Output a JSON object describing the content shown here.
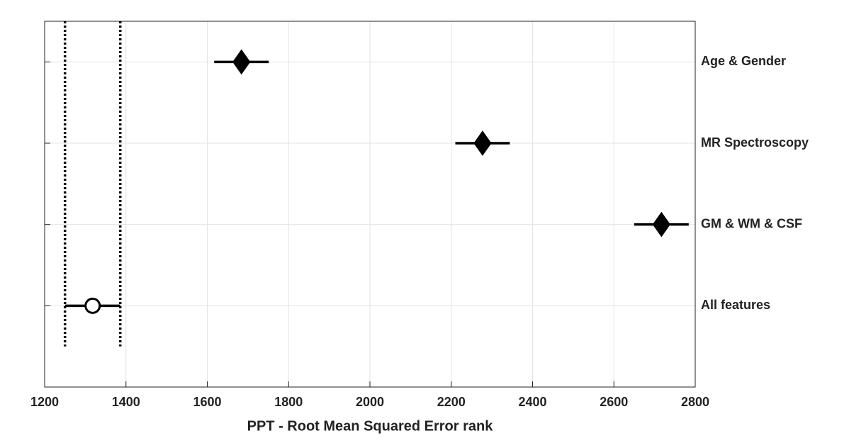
{
  "chart_data": {
    "type": "errorbar",
    "x_label": "PPT - Root Mean Squared Error rank",
    "categories": [
      "All features",
      "GM & WM & CSF",
      "MR Spectroscopy",
      "Age & Gender"
    ],
    "values": [
      1318,
      2717,
      2277,
      1684
    ],
    "errors": [
      68,
      67,
      67,
      67
    ],
    "markers": [
      "circle",
      "diamond",
      "diamond",
      "diamond"
    ],
    "highlight": 0,
    "color": "#000000",
    "xlim": [
      1200,
      2800
    ],
    "xticks": [
      1200,
      1400,
      1600,
      1800,
      2000,
      2200,
      2400,
      2600,
      2800
    ],
    "ylim": [
      0,
      4.5
    ],
    "grid": true
  }
}
